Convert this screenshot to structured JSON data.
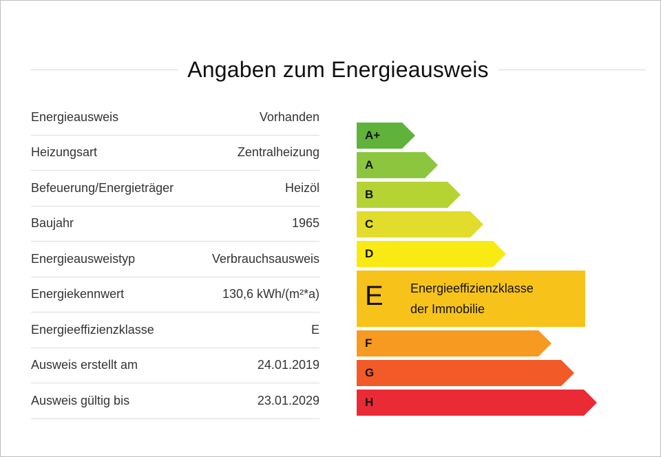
{
  "title": "Angaben zum Energieausweis",
  "rows": [
    {
      "label": "Energieausweis",
      "value": "Vorhanden"
    },
    {
      "label": "Heizungsart",
      "value": "Zentralheizung"
    },
    {
      "label": "Befeuerung/Energieträger",
      "value": "Heizöl"
    },
    {
      "label": "Baujahr",
      "value": "1965"
    },
    {
      "label": "Energieausweistyp",
      "value": "Verbrauchsausweis"
    },
    {
      "label": "Energiekennwert",
      "value": "130,6 kWh/(m²*a)"
    },
    {
      "label": "Energieeffizienzklasse",
      "value": "E"
    },
    {
      "label": "Ausweis erstellt am",
      "value": "24.01.2019"
    },
    {
      "label": "Ausweis gültig bis",
      "value": "23.01.2029"
    }
  ],
  "scale": {
    "classes": [
      {
        "label": "A+",
        "color": "#5fb33b"
      },
      {
        "label": "A",
        "color": "#8cc63f"
      },
      {
        "label": "B",
        "color": "#b6d334"
      },
      {
        "label": "C",
        "color": "#e2dc2c"
      },
      {
        "label": "D",
        "color": "#f9ea14"
      },
      {
        "label": "E",
        "color": "#f7c31b"
      },
      {
        "label": "F",
        "color": "#f79a21"
      },
      {
        "label": "G",
        "color": "#f25a27"
      },
      {
        "label": "H",
        "color": "#ea2b35"
      }
    ],
    "active": "E",
    "active_text_1": "Energieeffizienzklasse",
    "active_text_2": "der Immobilie"
  }
}
